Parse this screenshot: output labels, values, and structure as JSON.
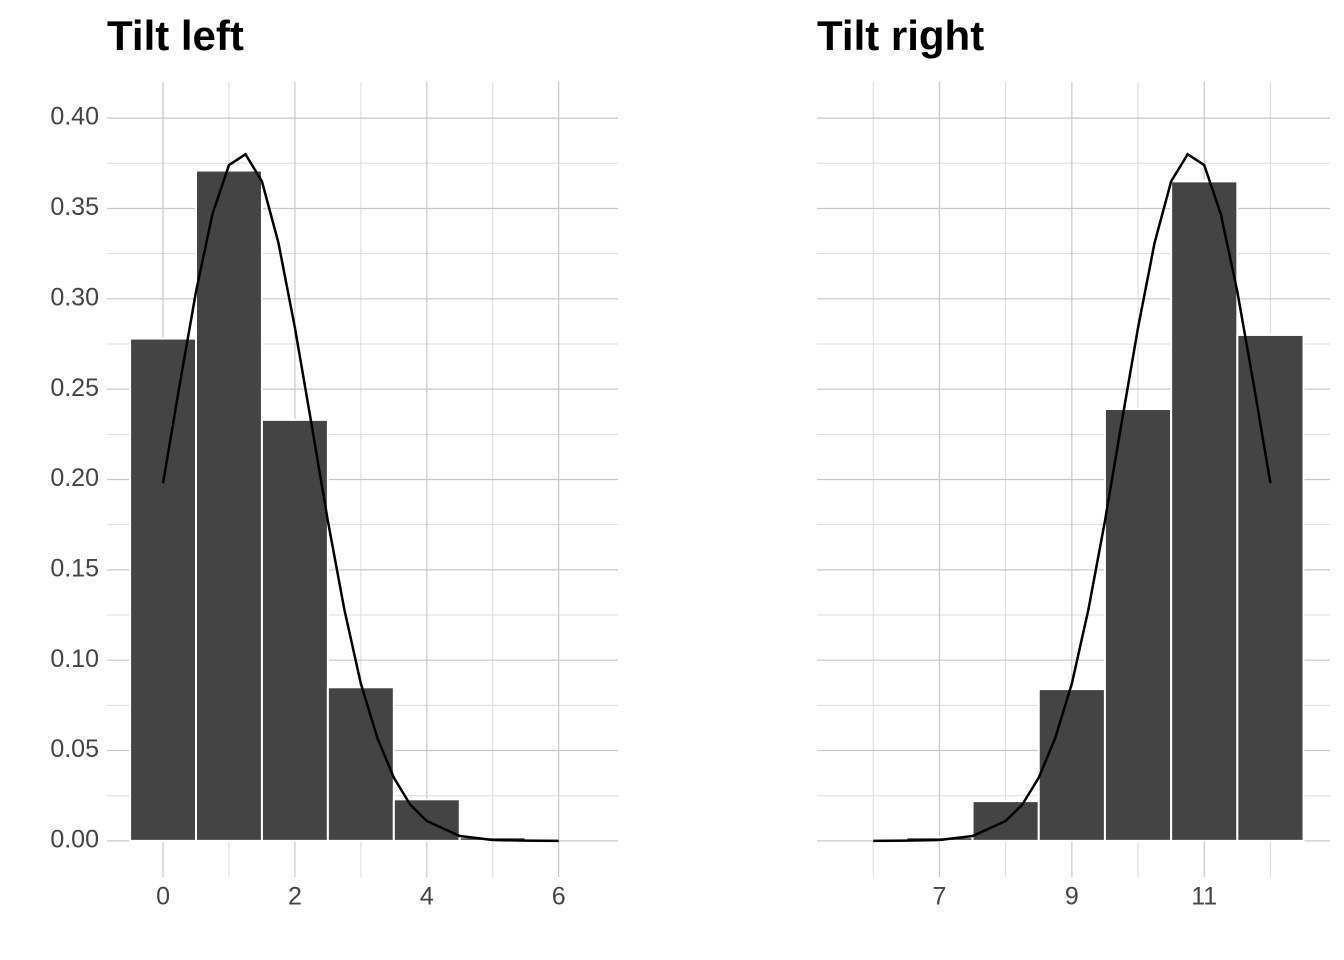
{
  "chart_data": [
    {
      "type": "bar",
      "title": "Tilt left",
      "color": "#444444",
      "grid": true,
      "show_ytick_labels": true,
      "bar_width": 1,
      "x": [
        0,
        1,
        2,
        3,
        4,
        5
      ],
      "values": [
        0.278,
        0.371,
        0.233,
        0.085,
        0.023,
        0.002
      ],
      "curve": {
        "color": "#000000",
        "x": [
          0,
          0.25,
          0.5,
          0.75,
          1,
          1.25,
          1.5,
          1.75,
          2,
          2.25,
          2.5,
          2.75,
          3,
          3.25,
          3.5,
          3.75,
          4,
          4.5,
          5,
          5.5,
          6
        ],
        "values": [
          0.198,
          0.252,
          0.304,
          0.347,
          0.374,
          0.38,
          0.365,
          0.331,
          0.284,
          0.231,
          0.177,
          0.128,
          0.087,
          0.057,
          0.035,
          0.02,
          0.011,
          0.0027,
          0.0005,
          0.0001,
          0
        ]
      },
      "xlim": [
        -0.85,
        6.9
      ],
      "xticks": [
        0,
        2,
        4,
        6
      ],
      "minor_xticks": [
        1,
        3,
        5
      ],
      "ylim": [
        -0.02,
        0.42
      ],
      "yticks": [
        {
          "value": 0,
          "label": "0.00"
        },
        0.05,
        {
          "value": 0.1,
          "label": "0.10"
        },
        0.15,
        {
          "value": 0.2,
          "label": "0.20"
        },
        0.25,
        {
          "value": 0.3,
          "label": "0.30"
        },
        0.35,
        {
          "value": 0.4,
          "label": "0.40"
        }
      ],
      "minor_yticks": [
        0.025,
        0.075,
        0.125,
        0.175,
        0.225,
        0.275,
        0.325,
        0.375
      ]
    },
    {
      "type": "bar",
      "title": "Tilt right",
      "color": "#444444",
      "grid": true,
      "show_ytick_labels": false,
      "bar_width": 1,
      "x": [
        7,
        8,
        9,
        10,
        11,
        12
      ],
      "values": [
        0.002,
        0.022,
        0.084,
        0.239,
        0.365,
        0.28
      ],
      "curve": {
        "color": "#000000",
        "x": [
          6,
          6.5,
          7,
          7.5,
          8,
          8.25,
          8.5,
          8.75,
          9,
          9.25,
          9.5,
          9.75,
          10,
          10.25,
          10.5,
          10.75,
          11,
          11.25,
          11.5,
          11.75,
          12
        ],
        "values": [
          0,
          0.0001,
          0.0005,
          0.0027,
          0.011,
          0.02,
          0.035,
          0.057,
          0.087,
          0.128,
          0.177,
          0.231,
          0.284,
          0.331,
          0.365,
          0.38,
          0.374,
          0.347,
          0.304,
          0.252,
          0.198
        ]
      },
      "xlim": [
        5.15,
        12.9
      ],
      "xticks": [
        7,
        9,
        11
      ],
      "minor_xticks": [
        6,
        8,
        10,
        12
      ],
      "ylim": [
        -0.02,
        0.42
      ],
      "yticks": [
        0,
        0.05,
        0.1,
        0.15,
        0.2,
        0.25,
        0.3,
        0.35,
        0.4
      ],
      "minor_yticks": [
        0.025,
        0.075,
        0.125,
        0.175,
        0.225,
        0.275,
        0.325,
        0.375
      ]
    }
  ]
}
